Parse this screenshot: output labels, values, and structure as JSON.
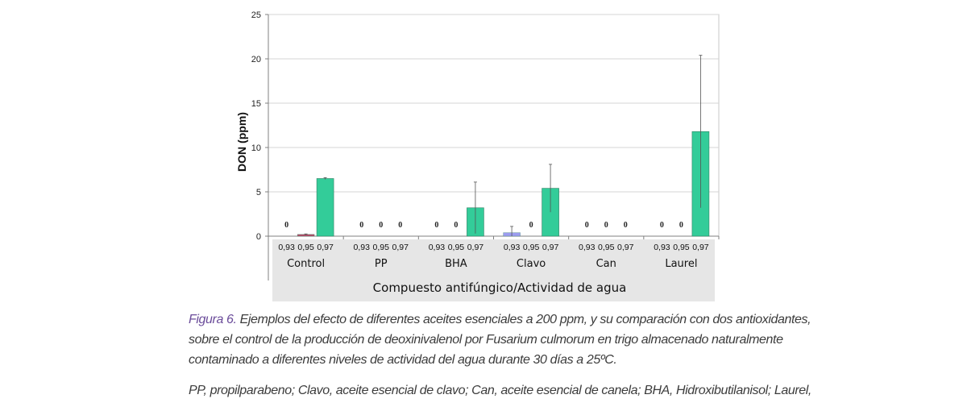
{
  "chart_data": {
    "type": "bar",
    "ylabel": "DON (ppm)",
    "xlabel": "Compuesto antifúngico/Actividad de agua",
    "ylim": [
      0,
      25
    ],
    "yticks": [
      0,
      5,
      10,
      15,
      20,
      25
    ],
    "grid": true,
    "groups": [
      "Control",
      "PP",
      "BHA",
      "Clavo",
      "Can",
      "Laurel"
    ],
    "sub_labels": [
      "0,93",
      "0,95",
      "0,97"
    ],
    "series": [
      {
        "values": [
          0,
          0,
          0,
          0.4,
          0,
          0
        ],
        "errors": [
          0,
          0,
          0,
          0.7,
          0,
          0
        ],
        "color": "#9c9cf0"
      },
      {
        "values": [
          0.2,
          0,
          0,
          0,
          0,
          0
        ],
        "errors": [
          0.05,
          0,
          0,
          0,
          0,
          0
        ],
        "color": "#b14a66"
      },
      {
        "values": [
          6.5,
          0,
          3.2,
          5.4,
          0,
          11.8
        ],
        "errors": [
          0.1,
          0,
          2.9,
          2.7,
          0,
          8.6
        ],
        "color": "#33cc99"
      }
    ],
    "zero_labels": [
      [
        "0",
        null,
        null
      ],
      [
        "0",
        "0",
        "0"
      ],
      [
        "0",
        "0",
        null
      ],
      [
        null,
        "0",
        null
      ],
      [
        "0",
        "0",
        "0"
      ],
      [
        "0",
        "0",
        null
      ]
    ]
  },
  "caption": {
    "figure_label": "Figura 6.",
    "figure_text_lines": [
      " Ejemplos del efecto de diferentes aceites esenciales a 200 ppm, y su comparación con dos antioxidantes,",
      "sobre el control de la producción de deoxinivalenol por Fusarium culmorum en trigo almacenado naturalmente",
      "contaminado a diferentes niveles de actividad del agua durante 30 días a 25ºC."
    ],
    "note": "PP, propilparabeno; Clavo, aceite esencial de clavo; Can, aceite esencial de canela; BHA, Hidroxibutilanisol; Laurel,"
  }
}
